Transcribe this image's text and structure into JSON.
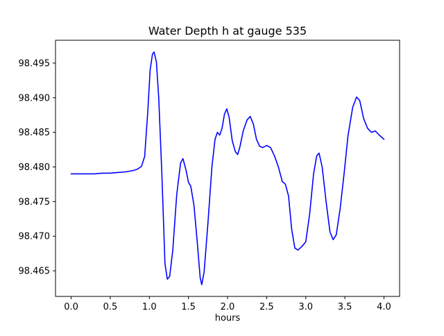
{
  "chart": {
    "title": "Water Depth h at gauge 535",
    "xlabel": "hours"
  },
  "chart_data": {
    "type": "line",
    "title": "Water Depth h at gauge 535",
    "xlabel": "hours",
    "ylabel": "",
    "legend": "none",
    "grid": false,
    "line_color": "#0000ff",
    "line_width": 1.6,
    "background_color": "#ffffff",
    "frame_color": "#000000",
    "xlim": [
      -0.2,
      4.2
    ],
    "ylim": [
      98.4613,
      98.4983
    ],
    "x_ticks": {
      "values": [
        0.0,
        0.5,
        1.0,
        1.5,
        2.0,
        2.5,
        3.0,
        3.5,
        4.0
      ],
      "labels": [
        "0.0",
        "0.5",
        "1.0",
        "1.5",
        "2.0",
        "2.5",
        "3.0",
        "3.5",
        "4.0"
      ]
    },
    "y_ticks": {
      "values": [
        98.465,
        98.47,
        98.475,
        98.48,
        98.485,
        98.49,
        98.495
      ],
      "labels": [
        "98.465",
        "98.470",
        "98.475",
        "98.480",
        "98.485",
        "98.490",
        "98.495"
      ]
    },
    "series": [
      {
        "name": "h",
        "points": [
          [
            0.0,
            98.479
          ],
          [
            0.1,
            98.479
          ],
          [
            0.2,
            98.479
          ],
          [
            0.3,
            98.479
          ],
          [
            0.4,
            98.4791
          ],
          [
            0.5,
            98.4791
          ],
          [
            0.6,
            98.4792
          ],
          [
            0.7,
            98.4793
          ],
          [
            0.8,
            98.4795
          ],
          [
            0.85,
            98.4797
          ],
          [
            0.9,
            98.4801
          ],
          [
            0.94,
            98.4815
          ],
          [
            0.98,
            98.488
          ],
          [
            1.01,
            98.494
          ],
          [
            1.04,
            98.4963
          ],
          [
            1.06,
            98.4966
          ],
          [
            1.09,
            98.4952
          ],
          [
            1.12,
            98.49
          ],
          [
            1.16,
            98.479
          ],
          [
            1.2,
            98.466
          ],
          [
            1.23,
            98.4638
          ],
          [
            1.26,
            98.4642
          ],
          [
            1.3,
            98.468
          ],
          [
            1.35,
            98.476
          ],
          [
            1.4,
            98.4806
          ],
          [
            1.43,
            98.4812
          ],
          [
            1.47,
            98.4795
          ],
          [
            1.5,
            98.4778
          ],
          [
            1.53,
            98.4772
          ],
          [
            1.57,
            98.4745
          ],
          [
            1.61,
            98.4695
          ],
          [
            1.65,
            98.464
          ],
          [
            1.67,
            98.463
          ],
          [
            1.7,
            98.4648
          ],
          [
            1.75,
            98.472
          ],
          [
            1.8,
            98.48
          ],
          [
            1.84,
            98.484
          ],
          [
            1.87,
            98.485
          ],
          [
            1.9,
            98.4846
          ],
          [
            1.93,
            98.4856
          ],
          [
            1.96,
            98.4876
          ],
          [
            1.99,
            98.4884
          ],
          [
            2.02,
            98.4872
          ],
          [
            2.06,
            98.4838
          ],
          [
            2.1,
            98.4822
          ],
          [
            2.13,
            98.4818
          ],
          [
            2.16,
            98.483
          ],
          [
            2.2,
            98.4852
          ],
          [
            2.25,
            98.4868
          ],
          [
            2.29,
            98.4873
          ],
          [
            2.33,
            98.4862
          ],
          [
            2.37,
            98.484
          ],
          [
            2.41,
            98.483
          ],
          [
            2.45,
            98.4828
          ],
          [
            2.5,
            98.4831
          ],
          [
            2.55,
            98.4828
          ],
          [
            2.6,
            98.4816
          ],
          [
            2.65,
            98.48
          ],
          [
            2.7,
            98.4779
          ],
          [
            2.74,
            98.4775
          ],
          [
            2.78,
            98.4758
          ],
          [
            2.82,
            98.471
          ],
          [
            2.86,
            98.4683
          ],
          [
            2.9,
            98.468
          ],
          [
            2.95,
            98.4685
          ],
          [
            3.0,
            98.4692
          ],
          [
            3.05,
            98.4732
          ],
          [
            3.1,
            98.479
          ],
          [
            3.14,
            98.4816
          ],
          [
            3.17,
            98.482
          ],
          [
            3.21,
            98.48
          ],
          [
            3.26,
            98.475
          ],
          [
            3.31,
            98.4706
          ],
          [
            3.35,
            98.4695
          ],
          [
            3.39,
            98.4702
          ],
          [
            3.44,
            98.474
          ],
          [
            3.49,
            98.479
          ],
          [
            3.54,
            98.4845
          ],
          [
            3.6,
            98.4886
          ],
          [
            3.65,
            98.4901
          ],
          [
            3.69,
            98.4896
          ],
          [
            3.74,
            98.487
          ],
          [
            3.79,
            98.4856
          ],
          [
            3.84,
            98.485
          ],
          [
            3.89,
            98.4852
          ],
          [
            3.94,
            98.4846
          ],
          [
            4.0,
            98.484
          ]
        ]
      }
    ]
  }
}
